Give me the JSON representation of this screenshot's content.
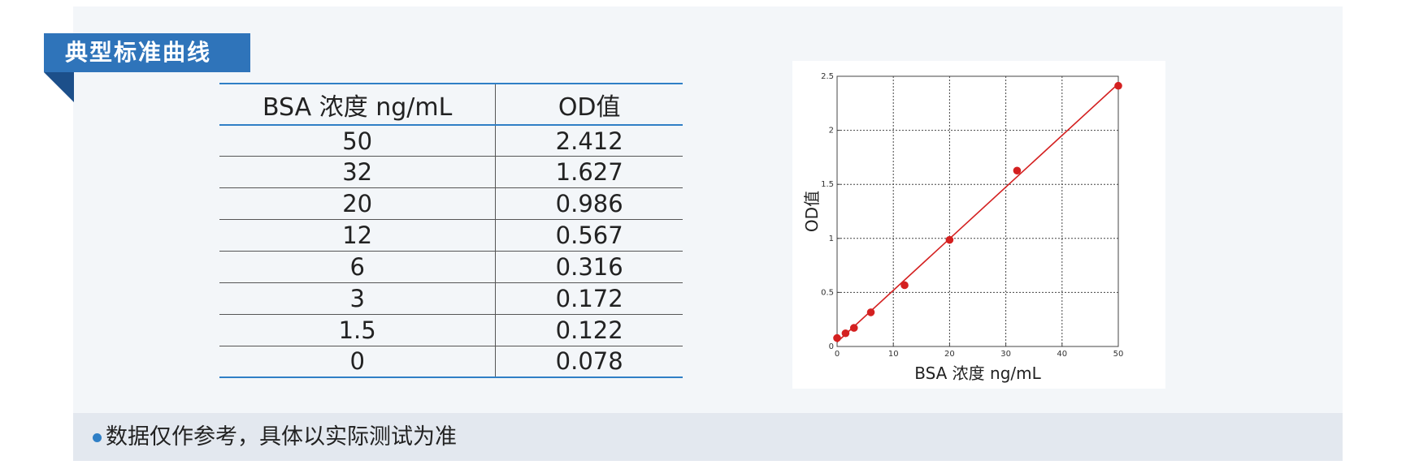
{
  "title": "典型标准曲线",
  "table": {
    "headers": [
      "BSA 浓度 ng/mL",
      "OD值"
    ],
    "rows": [
      [
        "50",
        "2.412"
      ],
      [
        "32",
        "1.627"
      ],
      [
        "20",
        "0.986"
      ],
      [
        "12",
        "0.567"
      ],
      [
        "6",
        "0.316"
      ],
      [
        "3",
        "0.172"
      ],
      [
        "1.5",
        "0.122"
      ],
      [
        "0",
        "0.078"
      ]
    ]
  },
  "footer": {
    "note": "数据仅作参考，具体以实际测试为准"
  },
  "colors": {
    "accent": "#2f74ba",
    "accent_dark": "#1c4f8a",
    "table_rule": "#2f7fc6",
    "panel_bg": "#f3f6f9",
    "footer_bg": "#e3e8ef",
    "series": "#d42020"
  },
  "chart_data": {
    "type": "scatter",
    "title": "",
    "xlabel": "BSA 浓度 ng/mL",
    "ylabel": "OD值",
    "xlim": [
      0,
      50
    ],
    "ylim": [
      0,
      2.5
    ],
    "xticks": [
      0,
      10,
      20,
      30,
      40,
      50
    ],
    "yticks": [
      0,
      0.5,
      1,
      1.5,
      2,
      2.5
    ],
    "xtick_labels": [
      "0",
      "10",
      "20",
      "30",
      "40",
      "50"
    ],
    "ytick_labels": [
      "0",
      "0.5",
      "1",
      "1.5",
      "2",
      "2.5"
    ],
    "grid": true,
    "fit_line": true,
    "series": [
      {
        "points": [
          {
            "x": 0,
            "y": 0.078
          },
          {
            "x": 1.5,
            "y": 0.122
          },
          {
            "x": 3,
            "y": 0.172
          },
          {
            "x": 6,
            "y": 0.316
          },
          {
            "x": 12,
            "y": 0.567
          },
          {
            "x": 20,
            "y": 0.986
          },
          {
            "x": 32,
            "y": 1.627
          },
          {
            "x": 50,
            "y": 2.412
          }
        ]
      }
    ]
  }
}
